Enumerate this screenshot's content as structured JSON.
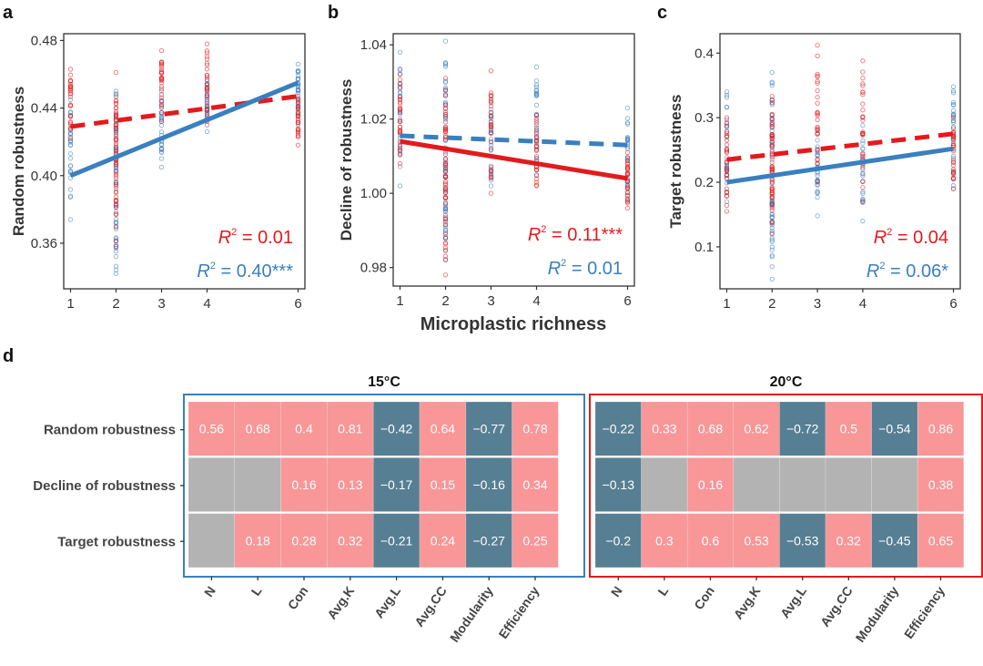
{
  "colors": {
    "red": "#e31a1c",
    "blue": "#3a7fbf",
    "positive_cell": "#f99697",
    "negative_cell": "#567f93",
    "na_cell": "#b3b3b3",
    "frame_15": "#3a7fbf",
    "frame_20": "#e31a1c"
  },
  "shared": {
    "xlabel": "Microplastic richness"
  },
  "chart_data": [
    {
      "panel": "a",
      "type": "scatter",
      "ylabel": "Random robustness",
      "xlabel": "Microplastic richness",
      "x_ticks": [
        1,
        2,
        3,
        4,
        6
      ],
      "y_ticks": [
        "0.36",
        "0.40",
        "0.44",
        "0.48"
      ],
      "xlim": [
        0.85,
        6.15
      ],
      "ylim": [
        0.333,
        0.484
      ],
      "series": [
        {
          "name": "20°C",
          "color": "red",
          "line": "dashed",
          "fit": [
            [
              1,
              0.429
            ],
            [
              6,
              0.447
            ]
          ],
          "ranges": {
            "1": [
              0.422,
              0.463
            ],
            "2": [
              0.358,
              0.461
            ],
            "3": [
              0.432,
              0.474
            ],
            "4": [
              0.43,
              0.478
            ],
            "6": [
              0.418,
              0.447
            ]
          },
          "r2": "0.01"
        },
        {
          "name": "15°C",
          "color": "blue",
          "line": "solid",
          "fit": [
            [
              1,
              0.4
            ],
            [
              6,
              0.455
            ]
          ],
          "ranges": {
            "1": [
              0.374,
              0.445
            ],
            "2": [
              0.342,
              0.45
            ],
            "3": [
              0.405,
              0.45
            ],
            "4": [
              0.426,
              0.456
            ],
            "6": [
              0.43,
              0.466
            ]
          },
          "r2": "0.40***"
        }
      ]
    },
    {
      "panel": "b",
      "type": "scatter",
      "ylabel": "Decline of robustness",
      "xlabel": "Microplastic richness",
      "x_ticks": [
        1,
        2,
        3,
        4,
        6
      ],
      "y_ticks": [
        "0.98",
        "1.00",
        "1.02",
        "1.04"
      ],
      "xlim": [
        0.85,
        6.15
      ],
      "ylim": [
        0.975,
        1.043
      ],
      "series": [
        {
          "name": "20°C",
          "color": "red",
          "line": "solid",
          "fit": [
            [
              1,
              1.014
            ],
            [
              6,
              1.004
            ]
          ],
          "ranges": {
            "1": [
              1.008,
              1.032
            ],
            "2": [
              0.978,
              1.031
            ],
            "3": [
              1.0,
              1.033
            ],
            "4": [
              1.002,
              1.021
            ],
            "6": [
              0.996,
              1.011
            ]
          },
          "r2": "0.11***"
        },
        {
          "name": "15°C",
          "color": "blue",
          "line": "dashed",
          "fit": [
            [
              1,
              1.0155
            ],
            [
              6,
              1.013
            ]
          ],
          "ranges": {
            "1": [
              1.002,
              1.038
            ],
            "2": [
              0.982,
              1.041
            ],
            "3": [
              1.002,
              1.025
            ],
            "4": [
              1.005,
              1.034
            ],
            "6": [
              0.998,
              1.023
            ]
          },
          "r2": "0.01"
        }
      ]
    },
    {
      "panel": "c",
      "type": "scatter",
      "ylabel": "Target robustness",
      "xlabel": "Microplastic richness",
      "x_ticks": [
        1,
        2,
        3,
        4,
        6
      ],
      "y_ticks": [
        "0.1",
        "0.2",
        "0.3",
        "0.4"
      ],
      "xlim": [
        0.85,
        6.15
      ],
      "ylim": [
        0.035,
        0.43
      ],
      "series": [
        {
          "name": "20°C",
          "color": "red",
          "line": "dashed",
          "fit": [
            [
              1,
              0.235
            ],
            [
              6,
              0.275
            ]
          ],
          "ranges": {
            "1": [
              0.155,
              0.3
            ],
            "2": [
              0.12,
              0.333
            ],
            "3": [
              0.2,
              0.412
            ],
            "4": [
              0.17,
              0.388
            ],
            "6": [
              0.19,
              0.3
            ]
          },
          "r2": "0.04"
        },
        {
          "name": "15°C",
          "color": "blue",
          "line": "solid",
          "fit": [
            [
              1,
              0.2
            ],
            [
              6,
              0.252
            ]
          ],
          "ranges": {
            "1": [
              0.17,
              0.34
            ],
            "2": [
              0.05,
              0.37
            ],
            "3": [
              0.148,
              0.28
            ],
            "4": [
              0.14,
              0.3
            ],
            "6": [
              0.19,
              0.348
            ]
          },
          "r2": "0.06*"
        }
      ]
    },
    {
      "panel": "d",
      "type": "heatmap",
      "rows": [
        "Random robustness",
        "Decline of robustness",
        "Target robustness"
      ],
      "columns": [
        "N",
        "L",
        "Con",
        "Avg.K",
        "Avg.L",
        "Avg.CC",
        "Modularity",
        "Efficiency"
      ],
      "facets": [
        {
          "title": "15°C",
          "frame": "frame_15",
          "values": [
            [
              0.56,
              0.68,
              0.4,
              0.81,
              -0.42,
              0.64,
              -0.77,
              0.78
            ],
            [
              null,
              null,
              0.16,
              0.13,
              -0.17,
              0.15,
              -0.16,
              0.34
            ],
            [
              null,
              0.18,
              0.28,
              0.32,
              -0.21,
              0.24,
              -0.27,
              0.25
            ]
          ]
        },
        {
          "title": "20°C",
          "frame": "frame_20",
          "values": [
            [
              -0.22,
              0.33,
              0.68,
              0.62,
              -0.72,
              0.5,
              -0.54,
              0.86
            ],
            [
              -0.13,
              null,
              0.16,
              null,
              null,
              null,
              null,
              0.38
            ],
            [
              -0.2,
              0.3,
              0.6,
              0.53,
              -0.53,
              0.32,
              -0.45,
              0.65
            ]
          ]
        }
      ]
    }
  ]
}
